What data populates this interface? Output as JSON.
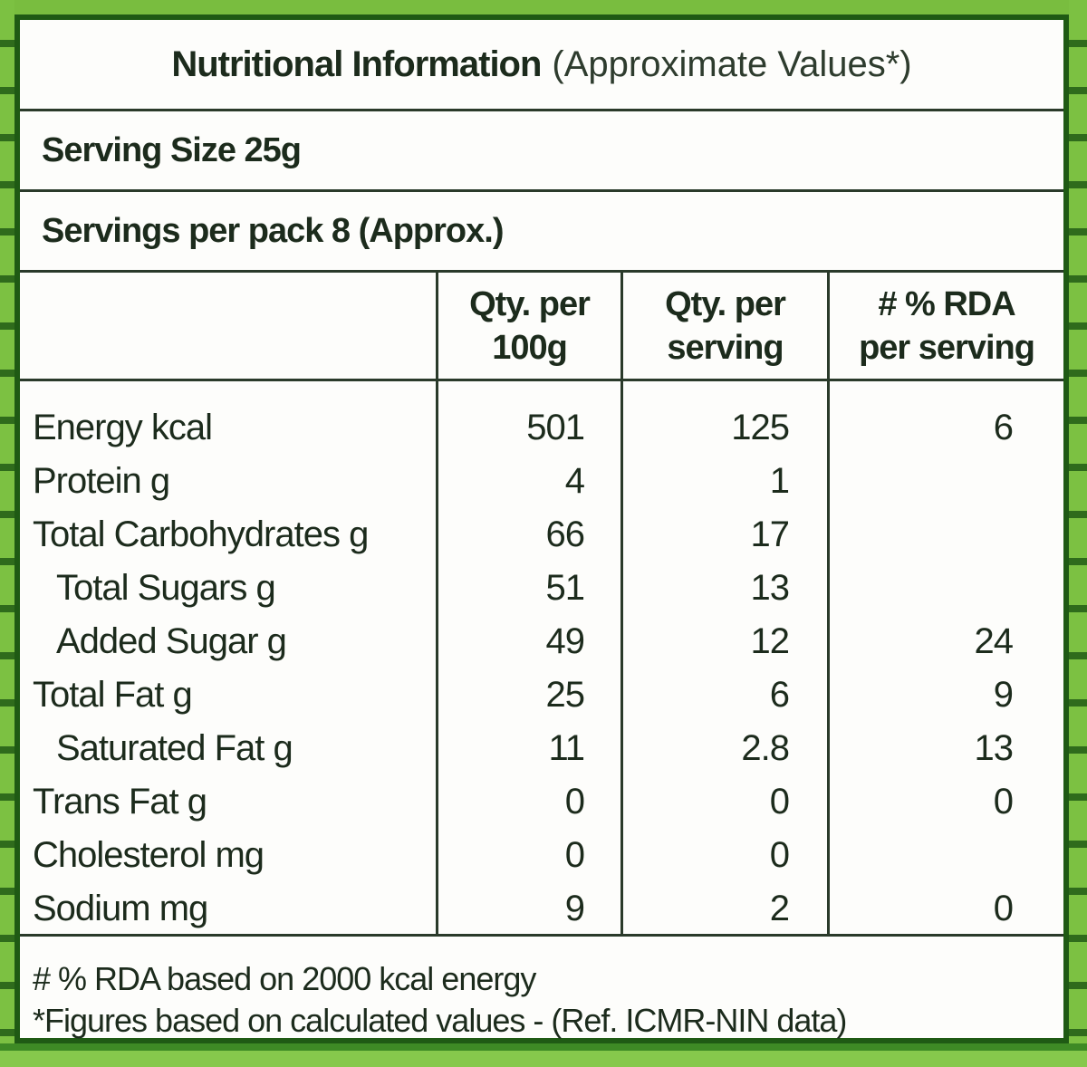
{
  "label": {
    "title_bold": "Nutritional Information",
    "title_light": "(Approximate Values*)",
    "serving_size": "Serving Size 25g",
    "servings_per_pack": "Servings per pack 8 (Approx.)"
  },
  "table": {
    "headers": [
      {
        "line1": "",
        "line2": ""
      },
      {
        "line1": "Qty. per",
        "line2": "100g"
      },
      {
        "line1": "Qty. per",
        "line2": "serving"
      },
      {
        "line1": "# % RDA",
        "line2": "per serving"
      }
    ],
    "rows": [
      {
        "nutrient": "Energy kcal",
        "indent": false,
        "per_100g": "501",
        "per_serving": "125",
        "rda": "6"
      },
      {
        "nutrient": "Protein g",
        "indent": false,
        "per_100g": "4",
        "per_serving": "1",
        "rda": ""
      },
      {
        "nutrient": "Total Carbohydrates g",
        "indent": false,
        "per_100g": "66",
        "per_serving": "17",
        "rda": ""
      },
      {
        "nutrient": "Total Sugars g",
        "indent": true,
        "per_100g": "51",
        "per_serving": "13",
        "rda": ""
      },
      {
        "nutrient": "Added Sugar g",
        "indent": true,
        "per_100g": "49",
        "per_serving": "12",
        "rda": "24"
      },
      {
        "nutrient": "Total Fat g",
        "indent": false,
        "per_100g": "25",
        "per_serving": "6",
        "rda": "9"
      },
      {
        "nutrient": "Saturated Fat g",
        "indent": true,
        "per_100g": "11",
        "per_serving": "2.8",
        "rda": "13"
      },
      {
        "nutrient": "Trans Fat g",
        "indent": false,
        "per_100g": "0",
        "per_serving": "0",
        "rda": "0"
      },
      {
        "nutrient": "Cholesterol mg",
        "indent": false,
        "per_100g": "0",
        "per_serving": "0",
        "rda": ""
      },
      {
        "nutrient": "Sodium mg",
        "indent": false,
        "per_100g": "9",
        "per_serving": "2",
        "rda": "0"
      }
    ]
  },
  "footer": {
    "note1": "# % RDA based on 2000 kcal energy",
    "note2": "*Figures based on calculated values - (Ref. ICMR-NIN data)"
  },
  "colors": {
    "frame_green": "#6fb43a",
    "border_dark_green": "#1f5a14",
    "text": "#1c2b1c"
  }
}
